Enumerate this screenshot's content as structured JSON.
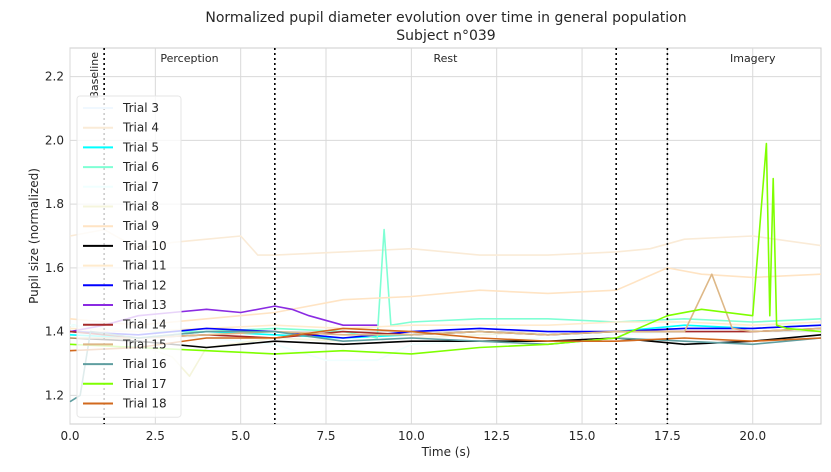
{
  "chart_data": {
    "type": "line",
    "title": "Normalized pupil diameter evolution over time in general population",
    "subtitle": "Subject n°039",
    "xlabel": "Time (s)",
    "ylabel": "Pupil size (normalized)",
    "xlim": [
      0,
      22
    ],
    "ylim": [
      1.11,
      2.29
    ],
    "xticks": [
      0.0,
      2.5,
      5.0,
      7.5,
      10.0,
      12.5,
      15.0,
      17.5,
      20.0
    ],
    "xtick_labels": [
      "0.0",
      "2.5",
      "5.0",
      "7.5",
      "10.0",
      "12.5",
      "15.0",
      "17.5",
      "20.0"
    ],
    "yticks": [
      1.2,
      1.4,
      1.6,
      1.8,
      2.0,
      2.2
    ],
    "ytick_labels": [
      "1.2",
      "1.4",
      "1.6",
      "1.8",
      "2.0",
      "2.2"
    ],
    "grid": true,
    "legend_position": "left",
    "phase_lines": [
      1.0,
      6.0,
      16.0,
      17.5
    ],
    "phases": [
      {
        "label": "Baseline",
        "x": 0.7,
        "vertical": true
      },
      {
        "label": "Perception",
        "x": 3.5,
        "vertical": false
      },
      {
        "label": "Rest",
        "x": 11.0,
        "vertical": false
      },
      {
        "label": "Imagery",
        "x": 20.0,
        "vertical": false
      }
    ],
    "series": [
      {
        "name": "Trial 3",
        "color": "#f0f8ff",
        "x": [
          0,
          2,
          4,
          6,
          8,
          10,
          12,
          14,
          16,
          18,
          20,
          22
        ],
        "y": [
          1.4,
          1.39,
          1.38,
          1.38,
          1.37,
          1.38,
          1.39,
          1.4,
          1.4,
          1.41,
          1.42,
          1.42
        ]
      },
      {
        "name": "Trial 4",
        "color": "#faebd7",
        "x": [
          0,
          1,
          2,
          3,
          4,
          5,
          5.5,
          6,
          8,
          10,
          12,
          14,
          16,
          17,
          18,
          20,
          22
        ],
        "y": [
          1.7,
          1.72,
          1.66,
          1.68,
          1.69,
          1.7,
          1.64,
          1.64,
          1.65,
          1.66,
          1.64,
          1.64,
          1.65,
          1.66,
          1.69,
          1.7,
          1.67
        ]
      },
      {
        "name": "Trial 5",
        "color": "#00ffff",
        "x": [
          0,
          2,
          4,
          6,
          8,
          10,
          12,
          14,
          16,
          18,
          20,
          22
        ],
        "y": [
          1.39,
          1.38,
          1.4,
          1.39,
          1.38,
          1.39,
          1.4,
          1.39,
          1.4,
          1.42,
          1.41,
          1.42
        ]
      },
      {
        "name": "Trial 6",
        "color": "#7fffd4",
        "x": [
          0,
          2,
          4,
          6,
          8,
          9,
          9.2,
          9.4,
          10,
          12,
          14,
          16,
          18,
          20,
          22
        ],
        "y": [
          1.42,
          1.4,
          1.4,
          1.41,
          1.4,
          1.38,
          1.72,
          1.42,
          1.43,
          1.44,
          1.44,
          1.43,
          1.44,
          1.43,
          1.44
        ]
      },
      {
        "name": "Trial 7",
        "color": "#f0ffff",
        "x": [
          0,
          2,
          4,
          6,
          7.5,
          9,
          10,
          12,
          14,
          16,
          18,
          20,
          22
        ],
        "y": [
          1.42,
          1.4,
          1.38,
          1.36,
          1.31,
          1.31,
          1.36,
          1.37,
          1.38,
          1.39,
          1.4,
          1.4,
          1.41
        ]
      },
      {
        "name": "Trial 8",
        "color": "#f5f5dc",
        "x": [
          0,
          1,
          2,
          3,
          3.5,
          4,
          6,
          8,
          10,
          12,
          14,
          16,
          18,
          20,
          22
        ],
        "y": [
          1.4,
          1.41,
          1.36,
          1.32,
          1.26,
          1.35,
          1.38,
          1.37,
          1.38,
          1.39,
          1.4,
          1.4,
          1.41,
          1.41,
          1.42
        ]
      },
      {
        "name": "Trial 9",
        "color": "#ffe4c4",
        "x": [
          0,
          2,
          4,
          6,
          8,
          10,
          12,
          14,
          16,
          17.5,
          18.5,
          20,
          22
        ],
        "y": [
          1.44,
          1.42,
          1.44,
          1.46,
          1.5,
          1.51,
          1.53,
          1.52,
          1.53,
          1.6,
          1.58,
          1.57,
          1.58
        ]
      },
      {
        "name": "Trial 10",
        "color": "#000000",
        "x": [
          0,
          2,
          4,
          6,
          8,
          10,
          12,
          14,
          16,
          18,
          20,
          22
        ],
        "y": [
          1.38,
          1.37,
          1.35,
          1.37,
          1.36,
          1.37,
          1.37,
          1.37,
          1.38,
          1.36,
          1.37,
          1.39
        ]
      },
      {
        "name": "Trial 11",
        "color": "#ffebcd",
        "x": [
          0,
          2,
          4,
          6,
          8,
          10,
          12,
          14,
          16,
          18,
          20,
          22
        ],
        "y": [
          1.41,
          1.4,
          1.41,
          1.42,
          1.41,
          1.42,
          1.42,
          1.42,
          1.43,
          1.43,
          1.42,
          1.43
        ]
      },
      {
        "name": "Trial 12",
        "color": "#0000ff",
        "x": [
          0,
          2,
          4,
          6,
          8,
          10,
          12,
          14,
          16,
          18,
          20,
          22
        ],
        "y": [
          1.4,
          1.39,
          1.41,
          1.4,
          1.38,
          1.4,
          1.41,
          1.4,
          1.4,
          1.41,
          1.41,
          1.42
        ]
      },
      {
        "name": "Trial 13",
        "color": "#8a2be2",
        "x": [
          0,
          1,
          2,
          3,
          4,
          5,
          6,
          6.5,
          7,
          8,
          9
        ],
        "y": [
          1.4,
          1.42,
          1.45,
          1.46,
          1.47,
          1.46,
          1.48,
          1.47,
          1.45,
          1.42,
          1.42
        ]
      },
      {
        "name": "Trial 14",
        "color": "#a52a2a",
        "x": [
          0,
          2,
          4,
          6,
          8,
          10,
          12,
          14,
          16,
          18,
          20,
          22
        ],
        "y": [
          1.4,
          1.38,
          1.39,
          1.38,
          1.4,
          1.39,
          1.4,
          1.39,
          1.4,
          1.4,
          1.4,
          1.41
        ]
      },
      {
        "name": "Trial 15",
        "color": "#deb887",
        "x": [
          0,
          2,
          4,
          6,
          8,
          10,
          12,
          14,
          16,
          18,
          18.8,
          19.4,
          20,
          22
        ],
        "y": [
          1.38,
          1.38,
          1.39,
          1.4,
          1.39,
          1.39,
          1.4,
          1.39,
          1.4,
          1.4,
          1.58,
          1.41,
          1.4,
          1.41
        ]
      },
      {
        "name": "Trial 16",
        "color": "#5f9ea0",
        "x": [
          0,
          0.3,
          0.6,
          2,
          4,
          6,
          8,
          10,
          12,
          14,
          16,
          18,
          20,
          22
        ],
        "y": [
          1.18,
          1.2,
          1.4,
          1.38,
          1.4,
          1.4,
          1.37,
          1.38,
          1.37,
          1.36,
          1.38,
          1.37,
          1.36,
          1.38
        ]
      },
      {
        "name": "Trial 17",
        "color": "#7fff00",
        "x": [
          0,
          2,
          4,
          6,
          8,
          10,
          12,
          14,
          16,
          17.5,
          18.5,
          20,
          20.4,
          20.5,
          20.6,
          20.7,
          21,
          22
        ],
        "y": [
          1.36,
          1.35,
          1.34,
          1.33,
          1.34,
          1.33,
          1.35,
          1.36,
          1.38,
          1.45,
          1.47,
          1.45,
          1.99,
          1.45,
          1.88,
          1.42,
          1.41,
          1.4
        ]
      },
      {
        "name": "Trial 18",
        "color": "#d2691e",
        "x": [
          0,
          2,
          4,
          6,
          8,
          10,
          12,
          14,
          16,
          18,
          20,
          22
        ],
        "y": [
          1.34,
          1.35,
          1.38,
          1.38,
          1.41,
          1.4,
          1.38,
          1.37,
          1.37,
          1.38,
          1.37,
          1.38
        ]
      }
    ]
  }
}
